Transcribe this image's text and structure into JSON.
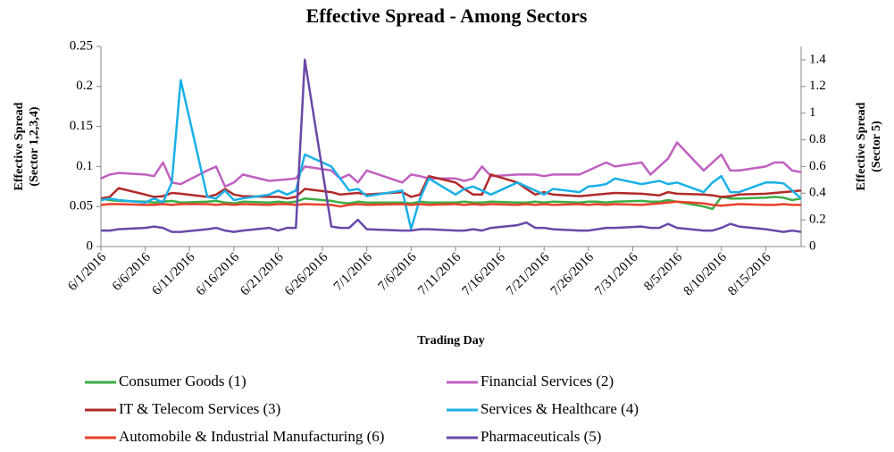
{
  "chart_data": {
    "type": "line",
    "title": "Effective Spread - Among Sectors",
    "xlabel": "Trading Day",
    "ylabel": [
      "Effective Spread",
      "(Sector 1,2,3,4)"
    ],
    "y2label": [
      "Effective Spread",
      "(Sector 5)"
    ],
    "x": [
      "6/1/2016",
      "6/2/2016",
      "6/3/2016",
      "6/6/2016",
      "6/7/2016",
      "6/8/2016",
      "6/9/2016",
      "6/10/2016",
      "6/13/2016",
      "6/14/2016",
      "6/15/2016",
      "6/16/2016",
      "6/17/2016",
      "6/20/2016",
      "6/21/2016",
      "6/22/2016",
      "6/23/2016",
      "6/24/2016",
      "6/27/2016",
      "6/28/2016",
      "6/29/2016",
      "6/30/2016",
      "7/1/2016",
      "7/5/2016",
      "7/6/2016",
      "7/7/2016",
      "7/8/2016",
      "7/11/2016",
      "7/12/2016",
      "7/13/2016",
      "7/14/2016",
      "7/15/2016",
      "7/18/2016",
      "7/19/2016",
      "7/20/2016",
      "7/21/2016",
      "7/22/2016",
      "7/25/2016",
      "7/26/2016",
      "7/27/2016",
      "7/28/2016",
      "7/29/2016",
      "8/1/2016",
      "8/2/2016",
      "8/3/2016",
      "8/4/2016",
      "8/5/2016",
      "8/8/2016",
      "8/9/2016",
      "8/10/2016",
      "8/11/2016",
      "8/12/2016",
      "8/15/2016",
      "8/16/2016",
      "8/17/2016",
      "8/18/2016",
      "8/19/2016"
    ],
    "xlim": [
      "6/1/2016",
      "8/19/2016"
    ],
    "xticks": [
      "6/1/2016",
      "6/6/2016",
      "6/11/2016",
      "6/16/2016",
      "6/21/2016",
      "6/26/2016",
      "7/1/2016",
      "7/6/2016",
      "7/11/2016",
      "7/16/2016",
      "7/21/2016",
      "7/26/2016",
      "7/31/2016",
      "8/5/2016",
      "8/10/2016",
      "8/15/2016"
    ],
    "ylim": [
      0,
      0.25
    ],
    "yticks": [
      0,
      0.05,
      0.1,
      0.15,
      0.2,
      0.25
    ],
    "y2lim": [
      0,
      1.5
    ],
    "y2ticks": [
      0,
      0.2,
      0.4,
      0.6,
      0.8,
      1,
      1.2,
      1.4
    ],
    "series": [
      {
        "name": "Consumer Goods (1)",
        "color": "#3cae45",
        "values": [
          0.06,
          0.058,
          0.057,
          0.056,
          0.055,
          0.056,
          0.057,
          0.055,
          0.056,
          0.057,
          0.055,
          0.054,
          0.056,
          0.055,
          0.056,
          0.055,
          0.056,
          0.06,
          0.057,
          0.055,
          0.054,
          0.056,
          0.055,
          0.055,
          0.054,
          0.056,
          0.055,
          0.055,
          0.056,
          0.055,
          0.055,
          0.056,
          0.055,
          0.055,
          0.056,
          0.055,
          0.056,
          0.055,
          0.056,
          0.056,
          0.055,
          0.056,
          0.057,
          0.056,
          0.056,
          0.058,
          0.056,
          0.05,
          0.047,
          0.062,
          0.06,
          0.06,
          0.061,
          0.062,
          0.061,
          0.058,
          0.06
        ]
      },
      {
        "name": "Financial Services (2)",
        "color": "#c060c0",
        "values": [
          0.085,
          0.09,
          0.092,
          0.09,
          0.088,
          0.105,
          0.08,
          0.078,
          0.095,
          0.1,
          0.075,
          0.08,
          0.09,
          0.082,
          0.083,
          0.084,
          0.085,
          0.1,
          0.095,
          0.085,
          0.09,
          0.08,
          0.095,
          0.08,
          0.09,
          0.088,
          0.085,
          0.085,
          0.082,
          0.085,
          0.1,
          0.088,
          0.09,
          0.09,
          0.09,
          0.088,
          0.09,
          0.09,
          0.095,
          0.1,
          0.105,
          0.1,
          0.105,
          0.09,
          0.1,
          0.11,
          0.13,
          0.095,
          0.105,
          0.115,
          0.095,
          0.095,
          0.1,
          0.105,
          0.105,
          0.095,
          0.093
        ]
      },
      {
        "name": "IT & Telecom Services (3)",
        "color": "#b22a2a",
        "values": [
          0.06,
          0.062,
          0.073,
          0.065,
          0.062,
          0.063,
          0.067,
          0.066,
          0.062,
          0.065,
          0.072,
          0.065,
          0.063,
          0.062,
          0.062,
          0.06,
          0.062,
          0.072,
          0.068,
          0.065,
          0.066,
          0.067,
          0.065,
          0.068,
          0.062,
          0.065,
          0.088,
          0.08,
          0.072,
          0.065,
          0.065,
          0.09,
          0.08,
          0.072,
          0.065,
          0.068,
          0.065,
          0.063,
          0.064,
          0.065,
          0.066,
          0.067,
          0.066,
          0.065,
          0.064,
          0.068,
          0.066,
          0.065,
          0.064,
          0.062,
          0.063,
          0.065,
          0.066,
          0.067,
          0.068,
          0.069,
          0.07
        ]
      },
      {
        "name": "Services & Healthcare (4)",
        "color": "#1ab0e8",
        "values": [
          0.058,
          0.06,
          0.058,
          0.055,
          0.06,
          0.055,
          0.08,
          0.208,
          0.062,
          0.06,
          0.07,
          0.058,
          0.06,
          0.065,
          0.07,
          0.065,
          0.07,
          0.115,
          0.1,
          0.085,
          0.07,
          0.072,
          0.063,
          0.07,
          0.022,
          0.06,
          0.085,
          0.065,
          0.072,
          0.075,
          0.07,
          0.065,
          0.08,
          0.075,
          0.07,
          0.065,
          0.072,
          0.068,
          0.075,
          0.076,
          0.078,
          0.085,
          0.078,
          0.08,
          0.082,
          0.078,
          0.08,
          0.068,
          0.08,
          0.088,
          0.068,
          0.068,
          0.08,
          0.08,
          0.079,
          0.07,
          0.06
        ]
      },
      {
        "name": "Automobile & Industrial Manufacturing (6)",
        "color": "#e8412c",
        "values": [
          0.052,
          0.053,
          0.053,
          0.052,
          0.052,
          0.053,
          0.052,
          0.053,
          0.053,
          0.052,
          0.053,
          0.052,
          0.053,
          0.052,
          0.053,
          0.053,
          0.052,
          0.053,
          0.052,
          0.05,
          0.052,
          0.053,
          0.052,
          0.053,
          0.052,
          0.053,
          0.052,
          0.053,
          0.052,
          0.053,
          0.052,
          0.053,
          0.052,
          0.053,
          0.052,
          0.053,
          0.052,
          0.053,
          0.052,
          0.053,
          0.052,
          0.053,
          0.052,
          0.053,
          0.054,
          0.055,
          0.056,
          0.054,
          0.052,
          0.051,
          0.052,
          0.053,
          0.052,
          0.052,
          0.053,
          0.052,
          0.052
        ]
      },
      {
        "name": "Pharmaceuticals (5)",
        "color": "#6a48a8",
        "axis": "y2",
        "values": [
          0.12,
          0.12,
          0.13,
          0.14,
          0.15,
          0.14,
          0.11,
          0.11,
          0.13,
          0.14,
          0.12,
          0.11,
          0.12,
          0.14,
          0.12,
          0.14,
          0.14,
          1.4,
          0.15,
          0.14,
          0.14,
          0.2,
          0.13,
          0.12,
          0.12,
          0.13,
          0.13,
          0.12,
          0.12,
          0.13,
          0.12,
          0.14,
          0.16,
          0.18,
          0.14,
          0.14,
          0.13,
          0.12,
          0.12,
          0.13,
          0.14,
          0.14,
          0.15,
          0.14,
          0.14,
          0.17,
          0.14,
          0.12,
          0.12,
          0.14,
          0.17,
          0.15,
          0.13,
          0.12,
          0.11,
          0.12,
          0.11
        ]
      }
    ]
  }
}
